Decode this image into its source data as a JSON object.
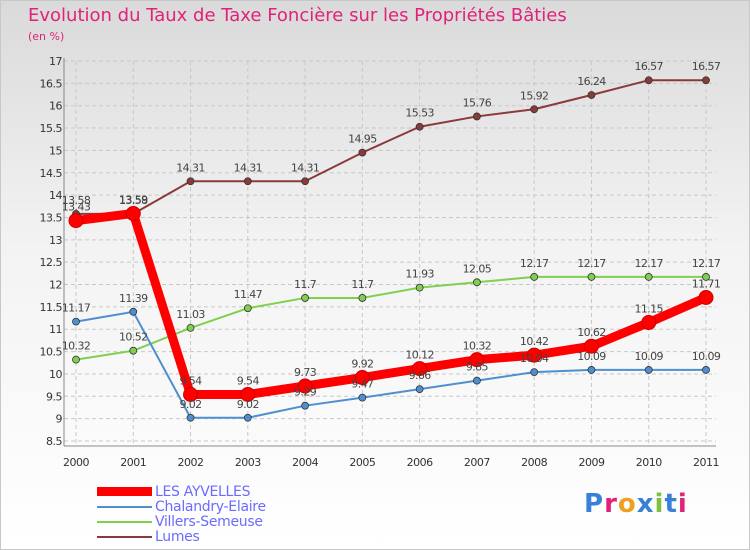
{
  "chart_data": {
    "type": "line",
    "title": "Evolution du Taux de Taxe Foncière sur les Propriétés Bâties",
    "subtitle": "(en %)",
    "x": [
      "2000",
      "2001",
      "2002",
      "2003",
      "2004",
      "2005",
      "2006",
      "2007",
      "2008",
      "2009",
      "2010",
      "2011"
    ],
    "ylim": [
      8.5,
      17
    ],
    "yticks": [
      "8.5",
      "9",
      "9.5",
      "10",
      "10.5",
      "11",
      "11.5",
      "12",
      "12.5",
      "13",
      "13.5",
      "14",
      "14.5",
      "15",
      "15.5",
      "16",
      "16.5",
      "17"
    ],
    "grid": true,
    "legend_position": "bottom-left",
    "series": [
      {
        "name": "LES AYVELLES",
        "color": "#ff0000",
        "values": [
          13.43,
          13.59,
          9.54,
          9.54,
          9.73,
          9.92,
          10.12,
          10.32,
          10.42,
          10.62,
          11.15,
          11.71
        ],
        "labels": [
          "13.43",
          "13.59",
          "9.54",
          "9.54",
          "9.73",
          "9.92",
          "10.12",
          "10.32",
          "10.42",
          "10.62",
          "11.15",
          "11.71"
        ]
      },
      {
        "name": "Chalandry-Elaire",
        "color": "#4f8fcf",
        "values": [
          11.17,
          11.39,
          9.02,
          9.02,
          9.29,
          9.47,
          9.66,
          9.85,
          10.04,
          10.09,
          10.09,
          10.09
        ],
        "labels": [
          "11.17",
          "11.39",
          "9.02",
          "9.02",
          "9.29",
          "9.47",
          "9.66",
          "9.85",
          "10.04",
          "10.09",
          "10.09",
          "10.09"
        ]
      },
      {
        "name": "Villers-Semeuse",
        "color": "#7fd04f",
        "values": [
          10.32,
          10.52,
          11.03,
          11.47,
          11.7,
          11.7,
          11.93,
          12.05,
          12.17,
          12.17,
          12.17,
          12.17
        ],
        "labels": [
          "10.32",
          "10.52",
          "11.03",
          "11.47",
          "11.7",
          "11.7",
          "11.93",
          "12.05",
          "12.17",
          "12.17",
          "12.17",
          "12.17"
        ]
      },
      {
        "name": "Lumes",
        "color": "#8b3a3a",
        "values": [
          13.58,
          13.58,
          14.31,
          14.31,
          14.31,
          14.95,
          15.53,
          15.76,
          15.92,
          16.24,
          16.57,
          16.57
        ],
        "labels": [
          "13.58",
          "13.58",
          "14.31",
          "14.31",
          "14.31",
          "14.95",
          "15.53",
          "15.76",
          "15.92",
          "16.24",
          "16.57",
          "16.57"
        ]
      }
    ]
  },
  "logo": {
    "text": "Proxiti",
    "colors": [
      "#3a7fd8",
      "#e0227a",
      "#f0a020",
      "#3a7fd8",
      "#7fc040",
      "#3a7fd8",
      "#e0227a"
    ]
  }
}
